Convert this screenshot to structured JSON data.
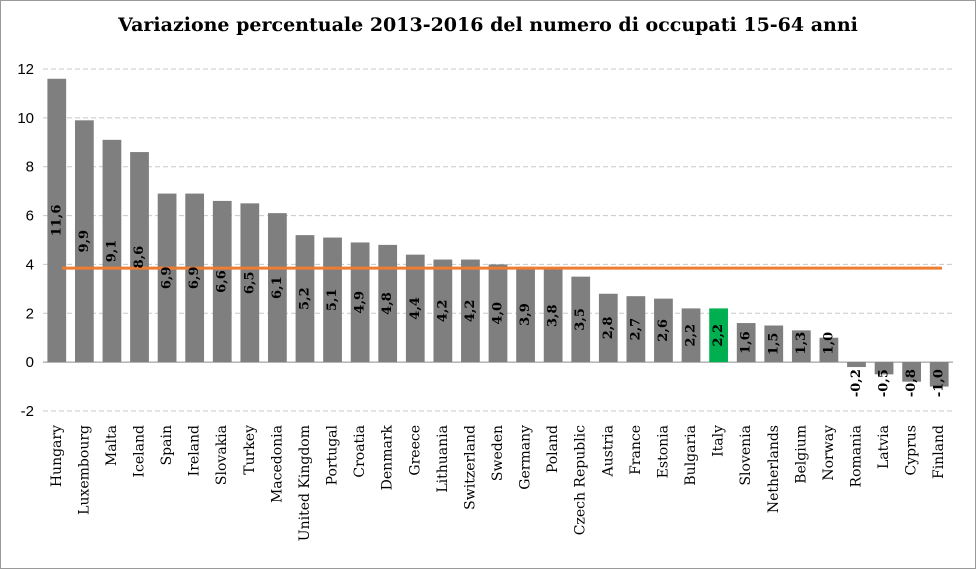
{
  "chart_data": {
    "type": "bar",
    "title": "Variazione percentuale 2013-2016 del numero di occupati 15-64  anni",
    "xlabel": "",
    "ylabel": "",
    "ylim": [
      -2,
      12
    ],
    "yticks": [
      12,
      10,
      8,
      6,
      4,
      2,
      0,
      -2
    ],
    "grid": true,
    "categories": [
      "Hungary",
      "Luxembourg",
      "Malta",
      "Iceland",
      "Spain",
      "Ireland",
      "Slovakia",
      "Turkey",
      "Macedonia",
      "United Kingdom",
      "Portugal",
      "Croatia",
      "Denmark",
      "Greece",
      "Lithuania",
      "Switzerland",
      "Sweden",
      "Germany",
      "Poland",
      "Czech Republic",
      "Austria",
      "France",
      "Estonia",
      "Bulgaria",
      "Italy",
      "Slovenia",
      "Netherlands",
      "Belgium",
      "Norway",
      "Romania",
      "Latvia",
      "Cyprus",
      "Finland"
    ],
    "values": [
      11.6,
      9.9,
      9.1,
      8.6,
      6.9,
      6.9,
      6.6,
      6.5,
      6.1,
      5.2,
      5.1,
      4.9,
      4.8,
      4.4,
      4.2,
      4.2,
      4.0,
      3.9,
      3.8,
      3.5,
      2.8,
      2.7,
      2.6,
      2.2,
      2.2,
      1.6,
      1.5,
      1.3,
      1.0,
      -0.2,
      -0.5,
      -0.8,
      -1.0
    ],
    "value_labels": [
      "11,6",
      "9,9",
      "9,1",
      "8,6",
      "6,9",
      "6,9",
      "6,6",
      "6,5",
      "6,1",
      "5,2",
      "5,1",
      "4,9",
      "4,8",
      "4,4",
      "4,2",
      "4,2",
      "4,0",
      "3,9",
      "3,8",
      "3,5",
      "2,8",
      "2,7",
      "2,6",
      "2,2",
      "2,2",
      "1,6",
      "1,5",
      "1,3",
      "1,0",
      "-0,2",
      "-0,5",
      "-0,8",
      "-1,0"
    ],
    "highlight_category": "Italy",
    "reference_line": 3.85,
    "colors": {
      "bar": "#7f7f7f",
      "highlight": "#00b050",
      "reference_line": "#ed7d31",
      "grid": "#c8c8c8"
    }
  }
}
